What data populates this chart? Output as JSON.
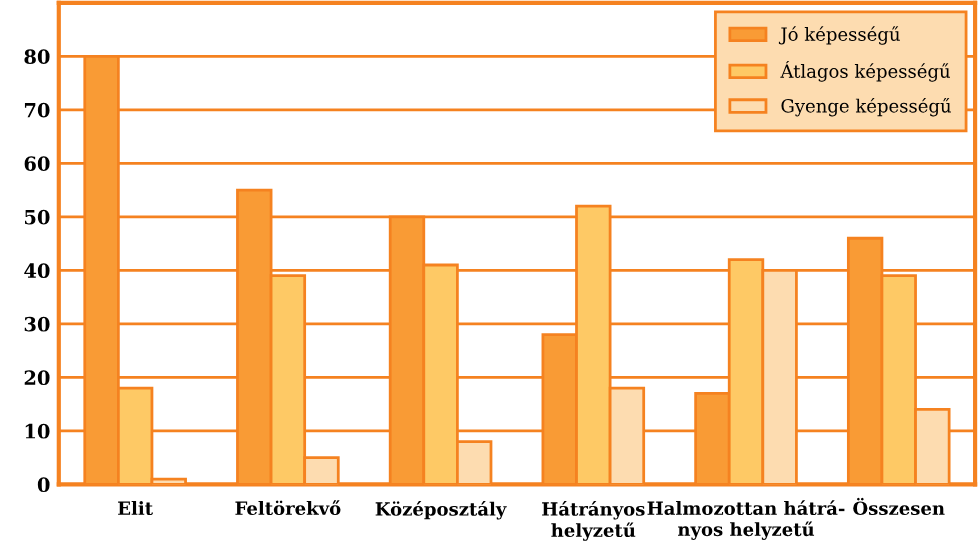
{
  "chart_data": {
    "type": "bar",
    "categories": [
      "Elit",
      "Feltörekvő",
      "Középosztály",
      "Hátrányos\nhelyzetű",
      "Halmozottan hátrá-\nnyos helyzetű",
      "Összesen"
    ],
    "series": [
      {
        "name": "Jó képességű",
        "color": "#f99b35",
        "values": [
          80,
          55,
          50,
          28,
          17,
          46
        ]
      },
      {
        "name": "Átlagos képességű",
        "color": "#fec965",
        "values": [
          18,
          39,
          41,
          52,
          42,
          39
        ]
      },
      {
        "name": "Gyenge képességű",
        "color": "#fddcb0",
        "values": [
          1,
          5,
          8,
          18,
          40,
          14
        ]
      }
    ],
    "ylim": [
      0,
      90
    ],
    "yticks": [
      0,
      10,
      20,
      30,
      40,
      50,
      60,
      70,
      80
    ],
    "grid": "y",
    "legend": "top right"
  }
}
